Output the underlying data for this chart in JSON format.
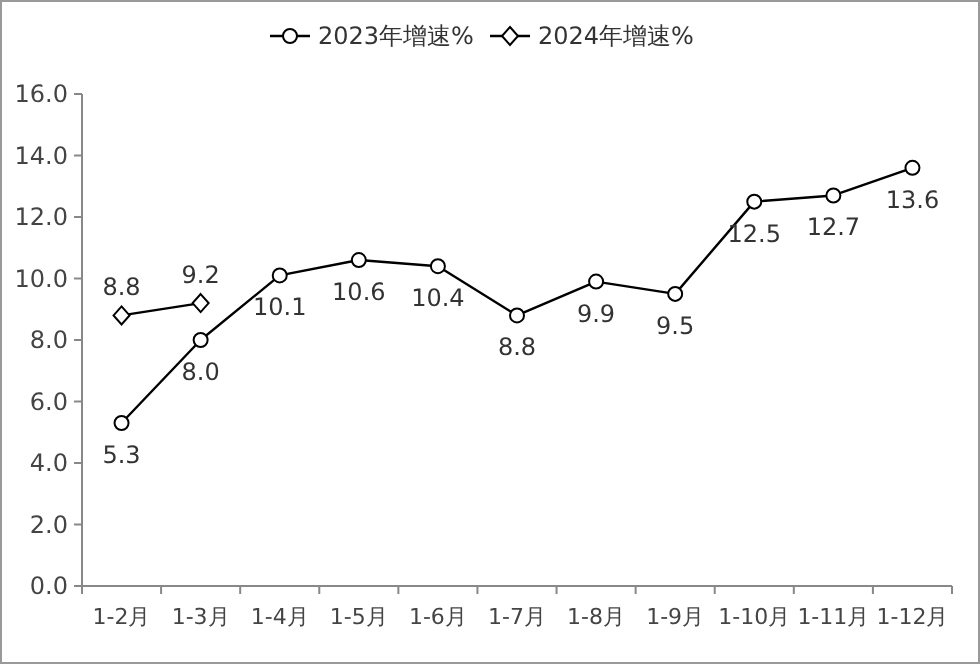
{
  "chart_data": {
    "type": "line",
    "categories": [
      "1-2月",
      "1-3月",
      "1-4月",
      "1-5月",
      "1-6月",
      "1-7月",
      "1-8月",
      "1-9月",
      "1-10月",
      "1-11月",
      "1-12月"
    ],
    "series": [
      {
        "name": "2023年增速%",
        "color": "#000000",
        "marker": "circle",
        "values": [
          5.3,
          8.0,
          10.1,
          10.6,
          10.4,
          8.8,
          9.9,
          9.5,
          12.5,
          12.7,
          13.6
        ],
        "value_labels": [
          "5.3",
          "8.0",
          "10.1",
          "10.6",
          "10.4",
          "8.8",
          "9.9",
          "9.5",
          "12.5",
          "12.7",
          "13.6"
        ]
      },
      {
        "name": "2024年增速%",
        "color": "#000000",
        "marker": "diamond",
        "values": [
          8.8,
          9.2,
          null,
          null,
          null,
          null,
          null,
          null,
          null,
          null,
          null
        ],
        "value_labels": [
          "8.8",
          "9.2",
          null,
          null,
          null,
          null,
          null,
          null,
          null,
          null,
          null
        ]
      }
    ],
    "ylim": [
      0,
      16
    ],
    "yticks": [
      {
        "value": 0,
        "label": "0.0"
      },
      {
        "value": 2,
        "label": "2.0"
      },
      {
        "value": 4,
        "label": "4.0"
      },
      {
        "value": 6,
        "label": "6.0"
      },
      {
        "value": 8,
        "label": "8.0"
      },
      {
        "value": 10,
        "label": "10.0"
      },
      {
        "value": 12,
        "label": "12.0"
      },
      {
        "value": 14,
        "label": "14.0"
      },
      {
        "value": 16,
        "label": "16.0"
      }
    ],
    "grid": false,
    "legend": "top",
    "line_style": "solid"
  }
}
